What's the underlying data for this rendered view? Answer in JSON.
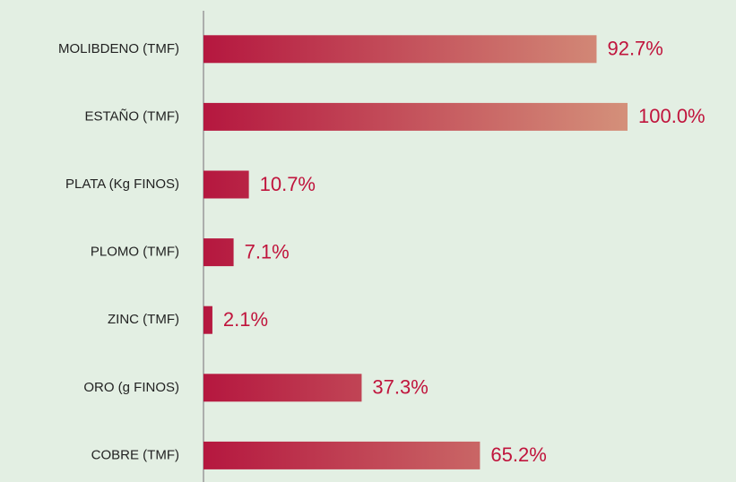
{
  "chart_data": {
    "type": "bar",
    "categories": [
      "MOLIBDENO (TMF)",
      "ESTAÑO (TMF)",
      "PLATA (Kg FINOS)",
      "PLOMO (TMF)",
      "ZINC (TMF)",
      "ORO (g FINOS)",
      "COBRE (TMF)"
    ],
    "values": [
      92.7,
      100.0,
      10.7,
      7.1,
      2.1,
      37.3,
      65.2
    ],
    "value_labels": [
      "92.7%",
      "100.0%",
      "10.7%",
      "7.1%",
      "2.1%",
      "37.3%",
      "65.2%"
    ],
    "color": "#b5173f",
    "color_end": "#d4907a",
    "label_color": "#c0143c",
    "xlim": [
      0,
      100
    ]
  }
}
